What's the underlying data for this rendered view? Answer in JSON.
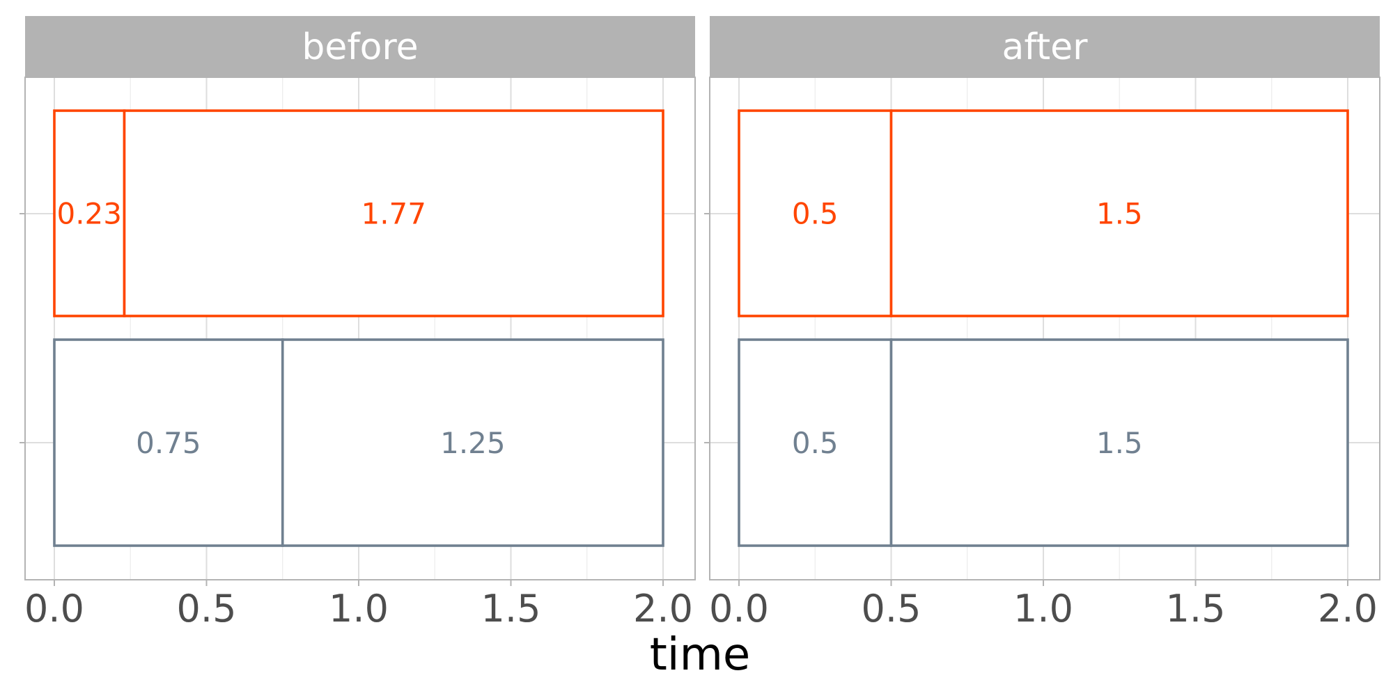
{
  "chart_data": {
    "type": "bar",
    "orientation": "horizontal",
    "stacked": true,
    "xlabel": "time",
    "xlim": [
      0,
      2
    ],
    "x_ticks": [
      "0.0",
      "0.5",
      "1.0",
      "1.5",
      "2.0"
    ],
    "grid": true,
    "colors": {
      "top": "#FF4500",
      "bottom": "#708090"
    },
    "panels": [
      {
        "title": "before",
        "bars": [
          {
            "color": "#FF4500",
            "segments": [
              {
                "value": 0.23,
                "label": "0.23"
              },
              {
                "value": 1.77,
                "label": "1.77"
              }
            ]
          },
          {
            "color": "#708090",
            "segments": [
              {
                "value": 0.75,
                "label": "0.75"
              },
              {
                "value": 1.25,
                "label": "1.25"
              }
            ]
          }
        ]
      },
      {
        "title": "after",
        "bars": [
          {
            "color": "#FF4500",
            "segments": [
              {
                "value": 0.5,
                "label": "0.5"
              },
              {
                "value": 1.5,
                "label": "1.5"
              }
            ]
          },
          {
            "color": "#708090",
            "segments": [
              {
                "value": 0.5,
                "label": "0.5"
              },
              {
                "value": 1.5,
                "label": "1.5"
              }
            ]
          }
        ]
      }
    ]
  }
}
